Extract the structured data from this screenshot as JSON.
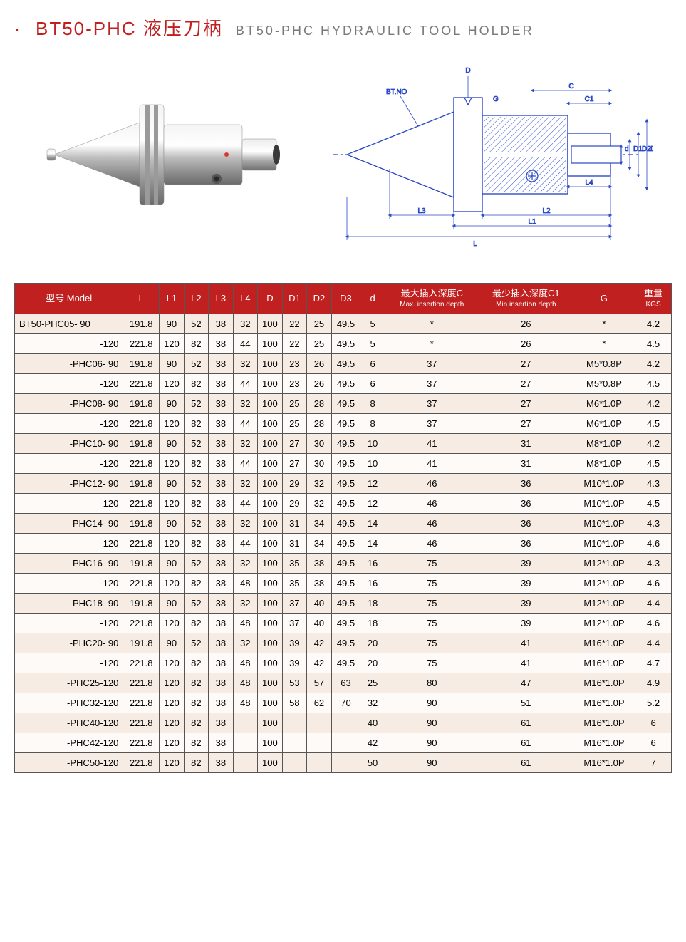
{
  "header": {
    "bullet": "·",
    "title_main": "BT50-PHC 液压刀柄",
    "title_sub": "BT50-PHC HYDRAULIC TOOL HOLDER"
  },
  "diagram_labels": {
    "btno": "BT.NO",
    "D": "D",
    "G": "G",
    "C": "C",
    "C1": "C1",
    "d": "d",
    "D1": "D1",
    "D2": "D2",
    "D3": "D3",
    "L4": "L4",
    "L3": "L3",
    "L2": "L2",
    "L1": "L1",
    "L": "L"
  },
  "table": {
    "columns": [
      {
        "key": "model",
        "label": "型号 Model"
      },
      {
        "key": "L",
        "label": "L"
      },
      {
        "key": "L1",
        "label": "L1"
      },
      {
        "key": "L2",
        "label": "L2"
      },
      {
        "key": "L3",
        "label": "L3"
      },
      {
        "key": "L4",
        "label": "L4"
      },
      {
        "key": "D",
        "label": "D"
      },
      {
        "key": "D1",
        "label": "D1"
      },
      {
        "key": "D2",
        "label": "D2"
      },
      {
        "key": "D3",
        "label": "D3"
      },
      {
        "key": "d",
        "label": "d"
      },
      {
        "key": "maxC",
        "label": "最大插入深度C",
        "sub": "Max. insertion depth"
      },
      {
        "key": "minC1",
        "label": "最少插入深度C1",
        "sub": "Min insertion depth"
      },
      {
        "key": "G",
        "label": "G"
      },
      {
        "key": "kgs",
        "label": "重量",
        "sub": "KGS"
      }
    ],
    "rows": [
      {
        "model": "BT50-PHC05- 90",
        "align": "left",
        "L": "191.8",
        "L1": "90",
        "L2": "52",
        "L3": "38",
        "L4": "32",
        "D": "100",
        "D1": "22",
        "D2": "25",
        "D3": "49.5",
        "d": "5",
        "maxC": "*",
        "minC1": "26",
        "G": "*",
        "kgs": "4.2"
      },
      {
        "model": "-120",
        "align": "right",
        "L": "221.8",
        "L1": "120",
        "L2": "82",
        "L3": "38",
        "L4": "44",
        "D": "100",
        "D1": "22",
        "D2": "25",
        "D3": "49.5",
        "d": "5",
        "maxC": "*",
        "minC1": "26",
        "G": "*",
        "kgs": "4.5"
      },
      {
        "model": "-PHC06- 90",
        "align": "right",
        "L": "191.8",
        "L1": "90",
        "L2": "52",
        "L3": "38",
        "L4": "32",
        "D": "100",
        "D1": "23",
        "D2": "26",
        "D3": "49.5",
        "d": "6",
        "maxC": "37",
        "minC1": "27",
        "G": "M5*0.8P",
        "kgs": "4.2"
      },
      {
        "model": "-120",
        "align": "right",
        "L": "221.8",
        "L1": "120",
        "L2": "82",
        "L3": "38",
        "L4": "44",
        "D": "100",
        "D1": "23",
        "D2": "26",
        "D3": "49.5",
        "d": "6",
        "maxC": "37",
        "minC1": "27",
        "G": "M5*0.8P",
        "kgs": "4.5"
      },
      {
        "model": "-PHC08- 90",
        "align": "right",
        "L": "191.8",
        "L1": "90",
        "L2": "52",
        "L3": "38",
        "L4": "32",
        "D": "100",
        "D1": "25",
        "D2": "28",
        "D3": "49.5",
        "d": "8",
        "maxC": "37",
        "minC1": "27",
        "G": "M6*1.0P",
        "kgs": "4.2"
      },
      {
        "model": "-120",
        "align": "right",
        "L": "221.8",
        "L1": "120",
        "L2": "82",
        "L3": "38",
        "L4": "44",
        "D": "100",
        "D1": "25",
        "D2": "28",
        "D3": "49.5",
        "d": "8",
        "maxC": "37",
        "minC1": "27",
        "G": "M6*1.0P",
        "kgs": "4.5"
      },
      {
        "model": "-PHC10- 90",
        "align": "right",
        "L": "191.8",
        "L1": "90",
        "L2": "52",
        "L3": "38",
        "L4": "32",
        "D": "100",
        "D1": "27",
        "D2": "30",
        "D3": "49.5",
        "d": "10",
        "maxC": "41",
        "minC1": "31",
        "G": "M8*1.0P",
        "kgs": "4.2"
      },
      {
        "model": "-120",
        "align": "right",
        "L": "221.8",
        "L1": "120",
        "L2": "82",
        "L3": "38",
        "L4": "44",
        "D": "100",
        "D1": "27",
        "D2": "30",
        "D3": "49.5",
        "d": "10",
        "maxC": "41",
        "minC1": "31",
        "G": "M8*1.0P",
        "kgs": "4.5"
      },
      {
        "model": "-PHC12- 90",
        "align": "right",
        "L": "191.8",
        "L1": "90",
        "L2": "52",
        "L3": "38",
        "L4": "32",
        "D": "100",
        "D1": "29",
        "D2": "32",
        "D3": "49.5",
        "d": "12",
        "maxC": "46",
        "minC1": "36",
        "G": "M10*1.0P",
        "kgs": "4.3"
      },
      {
        "model": "-120",
        "align": "right",
        "L": "221.8",
        "L1": "120",
        "L2": "82",
        "L3": "38",
        "L4": "44",
        "D": "100",
        "D1": "29",
        "D2": "32",
        "D3": "49.5",
        "d": "12",
        "maxC": "46",
        "minC1": "36",
        "G": "M10*1.0P",
        "kgs": "4.5"
      },
      {
        "model": "-PHC14- 90",
        "align": "right",
        "L": "191.8",
        "L1": "90",
        "L2": "52",
        "L3": "38",
        "L4": "32",
        "D": "100",
        "D1": "31",
        "D2": "34",
        "D3": "49.5",
        "d": "14",
        "maxC": "46",
        "minC1": "36",
        "G": "M10*1.0P",
        "kgs": "4.3"
      },
      {
        "model": "-120",
        "align": "right",
        "L": "221.8",
        "L1": "120",
        "L2": "82",
        "L3": "38",
        "L4": "44",
        "D": "100",
        "D1": "31",
        "D2": "34",
        "D3": "49.5",
        "d": "14",
        "maxC": "46",
        "minC1": "36",
        "G": "M10*1.0P",
        "kgs": "4.6"
      },
      {
        "model": "-PHC16- 90",
        "align": "right",
        "L": "191.8",
        "L1": "90",
        "L2": "52",
        "L3": "38",
        "L4": "32",
        "D": "100",
        "D1": "35",
        "D2": "38",
        "D3": "49.5",
        "d": "16",
        "maxC": "75",
        "minC1": "39",
        "G": "M12*1.0P",
        "kgs": "4.3"
      },
      {
        "model": "-120",
        "align": "right",
        "L": "221.8",
        "L1": "120",
        "L2": "82",
        "L3": "38",
        "L4": "48",
        "D": "100",
        "D1": "35",
        "D2": "38",
        "D3": "49.5",
        "d": "16",
        "maxC": "75",
        "minC1": "39",
        "G": "M12*1.0P",
        "kgs": "4.6"
      },
      {
        "model": "-PHC18- 90",
        "align": "right",
        "L": "191.8",
        "L1": "90",
        "L2": "52",
        "L3": "38",
        "L4": "32",
        "D": "100",
        "D1": "37",
        "D2": "40",
        "D3": "49.5",
        "d": "18",
        "maxC": "75",
        "minC1": "39",
        "G": "M12*1.0P",
        "kgs": "4.4"
      },
      {
        "model": "-120",
        "align": "right",
        "L": "221.8",
        "L1": "120",
        "L2": "82",
        "L3": "38",
        "L4": "48",
        "D": "100",
        "D1": "37",
        "D2": "40",
        "D3": "49.5",
        "d": "18",
        "maxC": "75",
        "minC1": "39",
        "G": "M12*1.0P",
        "kgs": "4.6"
      },
      {
        "model": "-PHC20- 90",
        "align": "right",
        "L": "191.8",
        "L1": "90",
        "L2": "52",
        "L3": "38",
        "L4": "32",
        "D": "100",
        "D1": "39",
        "D2": "42",
        "D3": "49.5",
        "d": "20",
        "maxC": "75",
        "minC1": "41",
        "G": "M16*1.0P",
        "kgs": "4.4"
      },
      {
        "model": "-120",
        "align": "right",
        "L": "221.8",
        "L1": "120",
        "L2": "82",
        "L3": "38",
        "L4": "48",
        "D": "100",
        "D1": "39",
        "D2": "42",
        "D3": "49.5",
        "d": "20",
        "maxC": "75",
        "minC1": "41",
        "G": "M16*1.0P",
        "kgs": "4.7"
      },
      {
        "model": "-PHC25-120",
        "align": "right",
        "L": "221.8",
        "L1": "120",
        "L2": "82",
        "L3": "38",
        "L4": "48",
        "D": "100",
        "D1": "53",
        "D2": "57",
        "D3": "63",
        "d": "25",
        "maxC": "80",
        "minC1": "47",
        "G": "M16*1.0P",
        "kgs": "4.9"
      },
      {
        "model": "-PHC32-120",
        "align": "right",
        "L": "221.8",
        "L1": "120",
        "L2": "82",
        "L3": "38",
        "L4": "48",
        "D": "100",
        "D1": "58",
        "D2": "62",
        "D3": "70",
        "d": "32",
        "maxC": "90",
        "minC1": "51",
        "G": "M16*1.0P",
        "kgs": "5.2"
      },
      {
        "model": "-PHC40-120",
        "align": "right",
        "L": "221.8",
        "L1": "120",
        "L2": "82",
        "L3": "38",
        "L4": "",
        "D": "100",
        "D1": "",
        "D2": "",
        "D3": "",
        "d": "40",
        "maxC": "90",
        "minC1": "61",
        "G": "M16*1.0P",
        "kgs": "6"
      },
      {
        "model": "-PHC42-120",
        "align": "right",
        "L": "221.8",
        "L1": "120",
        "L2": "82",
        "L3": "38",
        "L4": "",
        "D": "100",
        "D1": "",
        "D2": "",
        "D3": "",
        "d": "42",
        "maxC": "90",
        "minC1": "61",
        "G": "M16*1.0P",
        "kgs": "6"
      },
      {
        "model": "-PHC50-120",
        "align": "right",
        "L": "221.8",
        "L1": "120",
        "L2": "82",
        "L3": "38",
        "L4": "",
        "D": "100",
        "D1": "",
        "D2": "",
        "D3": "",
        "d": "50",
        "maxC": "90",
        "minC1": "61",
        "G": "M16*1.0P",
        "kgs": "7"
      }
    ]
  },
  "colors": {
    "header_bg": "#c02020",
    "header_fg": "#ffffff",
    "row_odd": "#f6ece4",
    "row_even": "#fdfaf7",
    "border": "#555555",
    "diagram_stroke": "#2a48c8",
    "diagram_hatch": "#2a48c8"
  }
}
